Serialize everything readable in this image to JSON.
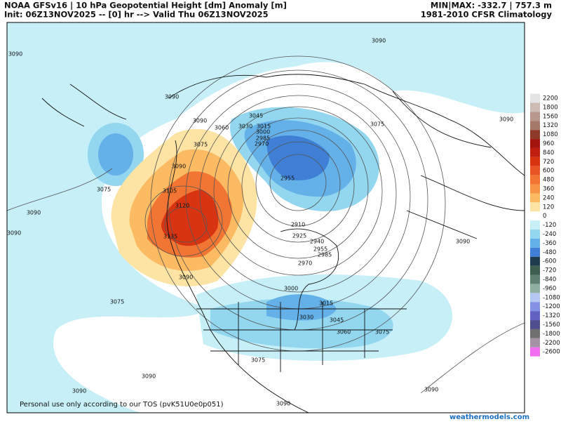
{
  "header": {
    "left_line1": "NOAA GFSv16 | 10 hPa Geopotential Height [dm] Anomaly [m]",
    "left_line2": "Init: 06Z13NOV2025 -- [0] hr --> Valid Thu 06Z13NOV2025",
    "right_line1": "MIN|MAX: -332.7 | 757.3 m",
    "right_line2": "1981-2010 CFSR Climatology"
  },
  "colorbar": {
    "levels": [
      {
        "value": 2200,
        "color": "#e4e4e4"
      },
      {
        "value": 1800,
        "color": "#cdbcb4"
      },
      {
        "value": 1560,
        "color": "#b8978c"
      },
      {
        "value": 1320,
        "color": "#a5786a"
      },
      {
        "value": 1080,
        "color": "#8e3a28"
      },
      {
        "value": 960,
        "color": "#a3140f"
      },
      {
        "value": 840,
        "color": "#c01f10"
      },
      {
        "value": 720,
        "color": "#d83412"
      },
      {
        "value": 600,
        "color": "#e95424"
      },
      {
        "value": 480,
        "color": "#f27533"
      },
      {
        "value": 360,
        "color": "#f89544"
      },
      {
        "value": 240,
        "color": "#fcbb62"
      },
      {
        "value": 120,
        "color": "#fde3a4"
      },
      {
        "value": 0,
        "color": "#ffffff"
      },
      {
        "value": -120,
        "color": "#c6eff8"
      },
      {
        "value": -240,
        "color": "#92d6f0"
      },
      {
        "value": -360,
        "color": "#63b1e8"
      },
      {
        "value": -480,
        "color": "#3f80d6"
      },
      {
        "value": -600,
        "color": "#1e3c4e"
      },
      {
        "value": -720,
        "color": "#3e5e50"
      },
      {
        "value": -840,
        "color": "#5f7f70"
      },
      {
        "value": -960,
        "color": "#8fb0a0"
      },
      {
        "value": -1080,
        "color": "#b3c8f2"
      },
      {
        "value": -1200,
        "color": "#8493e3"
      },
      {
        "value": -1320,
        "color": "#6262c2"
      },
      {
        "value": -1560,
        "color": "#4f4f8f"
      },
      {
        "value": -1800,
        "color": "#707070"
      },
      {
        "value": -2200,
        "color": "#a592a5"
      },
      {
        "value": -2600,
        "color": "#f26ef0"
      }
    ]
  },
  "contour_labels": [
    "3090",
    "3090",
    "3090",
    "3090",
    "3075",
    "3060",
    "3045",
    "3030",
    "3015",
    "3000",
    "2985",
    "2970",
    "2955",
    "3090",
    "3105",
    "3120",
    "3135",
    "3090",
    "3075",
    "3090",
    "3090",
    "3075",
    "3090",
    "2910",
    "2925",
    "2940",
    "2955",
    "2985",
    "2970",
    "3000",
    "3015",
    "3030",
    "3045",
    "3060",
    "3075",
    "3075",
    "3090",
    "3075",
    "3090",
    "3090",
    "3090",
    "3090"
  ],
  "footer": {
    "disclaimer": "Personal use only according to our TOS (pvK51U0e0p051)",
    "watermark": "weathermodels.com"
  }
}
